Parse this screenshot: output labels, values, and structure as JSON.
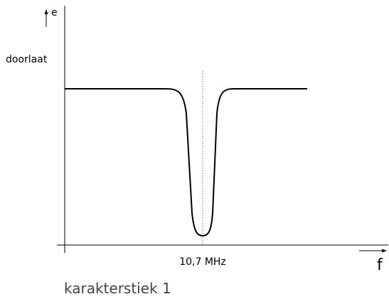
{
  "labels": {
    "y_axis": "e",
    "y_axis_caption": "doorlaat",
    "center_frequency": "10,7 MHz",
    "x_axis": "f",
    "caption": "karakterstiek 1"
  }
}
